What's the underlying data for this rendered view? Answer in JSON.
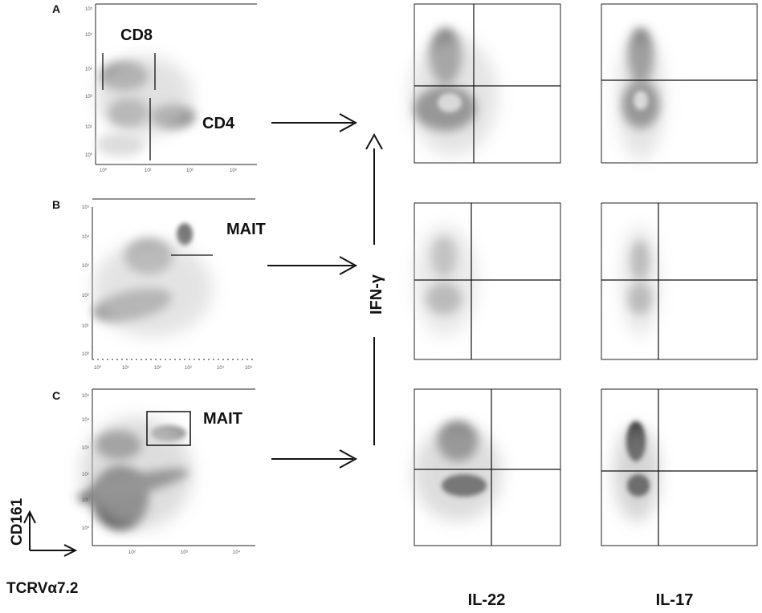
{
  "panels": [
    {
      "letter": "A",
      "gates": [
        "CD8",
        "CD4"
      ]
    },
    {
      "letter": "B",
      "gates": [
        "MAIT"
      ]
    },
    {
      "letter": "C",
      "gates": [
        "MAIT"
      ]
    }
  ],
  "axes": {
    "y_marker": "CD161",
    "x_marker": "TCRVα7.2",
    "ifn_label": "IFN-γ",
    "col1_label": "IL-22",
    "col2_label": "IL-17"
  },
  "tick_labels": [
    "10⁰",
    "10¹",
    "10²",
    "10³",
    "10⁴",
    "10⁵"
  ],
  "colors": {
    "ink": "#111111",
    "cloud_dark": "#3a3a3a",
    "cloud_light": "#9a9a9a"
  }
}
